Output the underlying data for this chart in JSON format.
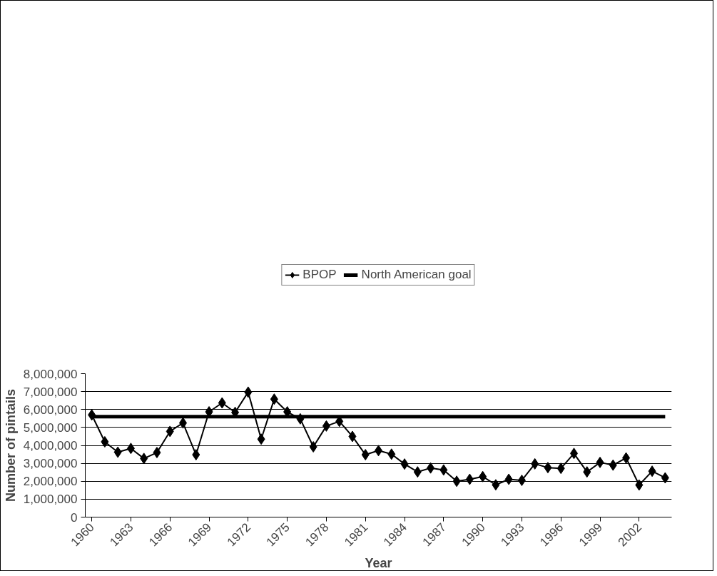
{
  "chart_data": {
    "type": "line",
    "xlabel": "Year",
    "ylabel": "Number of pintails",
    "categories": [
      "1960",
      null,
      null,
      "1963",
      null,
      null,
      "1966",
      null,
      null,
      "1969",
      null,
      null,
      "1972",
      null,
      null,
      "1975",
      null,
      null,
      "1978",
      null,
      null,
      "1981",
      null,
      null,
      "1984",
      null,
      null,
      "1987",
      null,
      null,
      "1990",
      null,
      null,
      "1993",
      null,
      null,
      "1996",
      null,
      null,
      "1999",
      null,
      null,
      "2002",
      null,
      null
    ],
    "series": [
      {
        "name": "BPOP",
        "color": "#000000",
        "marker": "diamond",
        "values": [
          5700000,
          4200000,
          3620000,
          3830000,
          3270000,
          3600000,
          4780000,
          5250000,
          3480000,
          5870000,
          6370000,
          5840000,
          6970000,
          4350000,
          6580000,
          5870000,
          5480000,
          3920000,
          5080000,
          5340000,
          4500000,
          3480000,
          3710000,
          3510000,
          2960000,
          2520000,
          2740000,
          2630000,
          2000000,
          2110000,
          2260000,
          1800000,
          2110000,
          2050000,
          2970000,
          2760000,
          2720000,
          3550000,
          2520000,
          3050000,
          2900000,
          3300000,
          1790000,
          2560000,
          2190000
        ]
      },
      {
        "name": "North American goal",
        "color": "#000000",
        "marker": "none",
        "values": [
          5600000,
          5600000,
          5600000,
          5600000,
          5600000,
          5600000,
          5600000,
          5600000,
          5600000,
          5600000,
          5600000,
          5600000,
          5600000,
          5600000,
          5600000,
          5600000,
          5600000,
          5600000,
          5600000,
          5600000,
          5600000,
          5600000,
          5600000,
          5600000,
          5600000,
          5600000,
          5600000,
          5600000,
          5600000,
          5600000,
          5600000,
          5600000,
          5600000,
          5600000,
          5600000,
          5600000,
          5600000,
          5600000,
          5600000,
          5600000,
          5600000,
          5600000,
          5600000,
          5600000,
          5600000
        ]
      }
    ],
    "ylim": [
      0,
      8000000
    ],
    "yticks": [
      {
        "value": 0,
        "label": "0"
      },
      {
        "value": 1000000,
        "label": "1,000,000"
      },
      {
        "value": 2000000,
        "label": "2,000,000"
      },
      {
        "value": 3000000,
        "label": "3,000,000"
      },
      {
        "value": 4000000,
        "label": "4,000,000"
      },
      {
        "value": 5000000,
        "label": "5,000,000"
      },
      {
        "value": 6000000,
        "label": "6,000,000"
      },
      {
        "value": 7000000,
        "label": "7,000,000"
      },
      {
        "value": 8000000,
        "label": "8,000,000"
      }
    ],
    "grid": "y",
    "legend": "top",
    "line_style": "solid"
  }
}
